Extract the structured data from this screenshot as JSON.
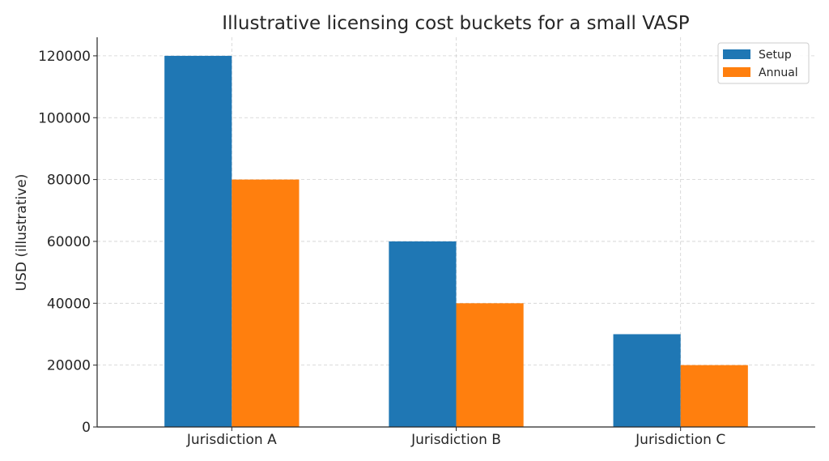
{
  "chart_data": {
    "type": "bar",
    "title": "Illustrative licensing cost buckets for a small VASP",
    "xlabel": "",
    "ylabel": "USD (illustrative)",
    "categories": [
      "Jurisdiction A",
      "Jurisdiction B",
      "Jurisdiction C"
    ],
    "series": [
      {
        "name": "Setup",
        "values": [
          120000,
          60000,
          30000
        ],
        "color": "#1f77b4"
      },
      {
        "name": "Annual",
        "values": [
          80000,
          40000,
          20000
        ],
        "color": "#ff7f0e"
      }
    ],
    "ylim": [
      0,
      126000
    ],
    "yticks": [
      0,
      20000,
      40000,
      60000,
      80000,
      100000,
      120000
    ],
    "grid": true,
    "legend_position": "top-right"
  }
}
